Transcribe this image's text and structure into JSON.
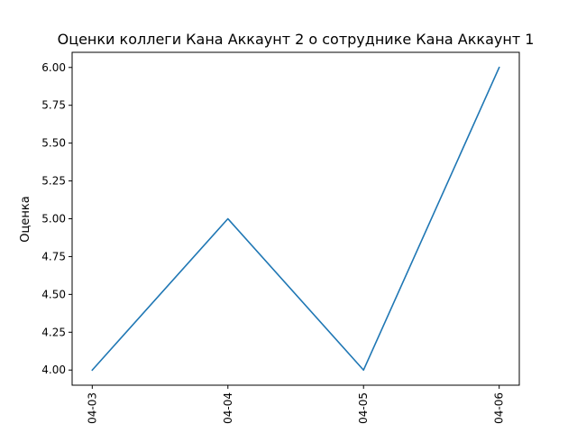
{
  "chart_data": {
    "type": "line",
    "title": "Оценки коллеги Кана Аккаунт 2 о сотруднике Кана Аккаунт 1",
    "xlabel": "",
    "ylabel": "Оценка",
    "categories": [
      "04-03",
      "04-04",
      "04-05",
      "04-06"
    ],
    "series": [
      {
        "values": [
          4.0,
          5.0,
          4.0,
          6.0
        ],
        "color": "#1f77b4"
      }
    ],
    "ylim": [
      3.9,
      6.1
    ],
    "yticks": [
      4.0,
      4.25,
      4.5,
      4.75,
      5.0,
      5.25,
      5.5,
      5.75,
      6.0
    ],
    "ytick_labels": [
      "4.00",
      "4.25",
      "4.50",
      "4.75",
      "5.00",
      "5.25",
      "5.50",
      "5.75",
      "6.00"
    ],
    "grid": false,
    "legend": "none"
  }
}
